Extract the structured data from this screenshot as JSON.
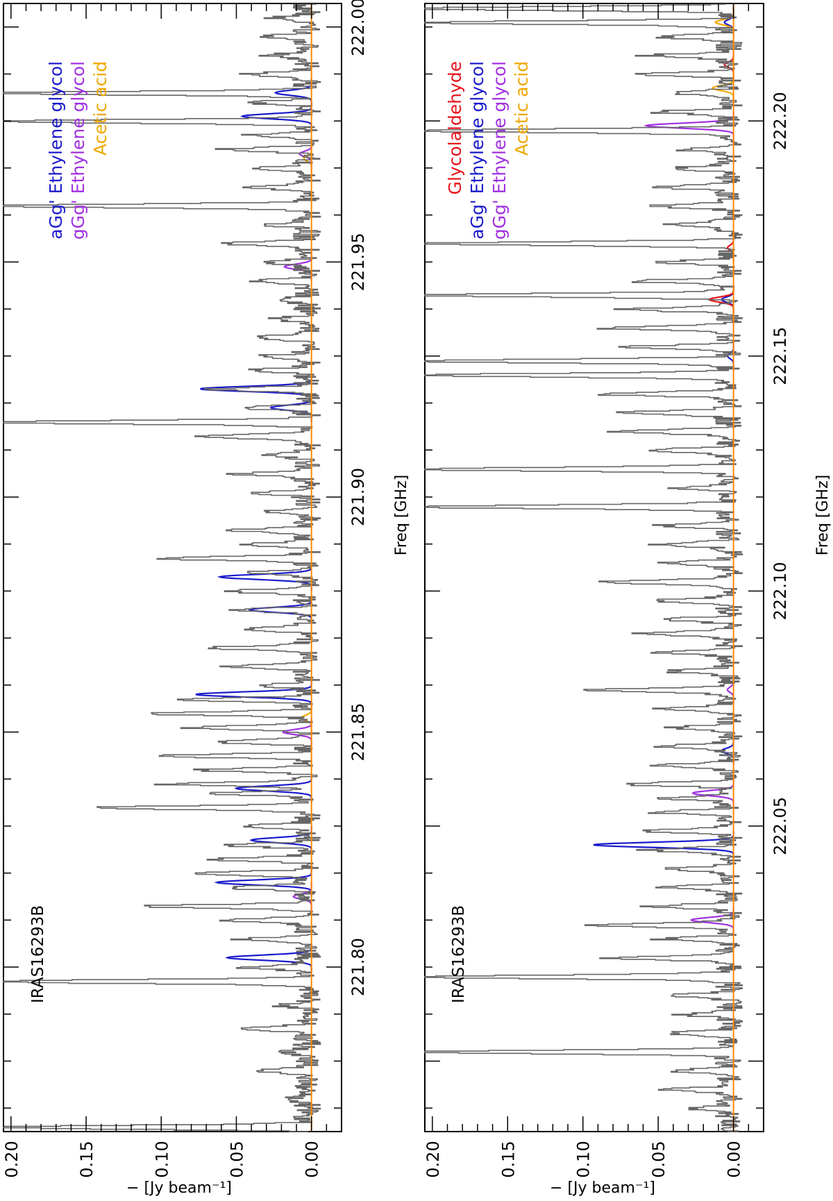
{
  "colors": {
    "observed": "#666666",
    "baseline": "#ff8800",
    "glycolaldehyde": "#e8141c",
    "aGg_ethylene_glycol": "#1a1acc",
    "gGg_ethylene_glycol": "#a030e0",
    "acetic_acid": "#f0a800"
  },
  "chart_data": [
    {
      "type": "line",
      "panel": "top",
      "source_label": "IRAS16293B",
      "xlabel": "Freq [GHz]",
      "ylabel": "− [Jy beam⁻¹]",
      "xlim": [
        221.765,
        222.005
      ],
      "ylim": [
        -0.02,
        0.205
      ],
      "x_ticks": [
        "221.80",
        "221.85",
        "221.90",
        "221.95",
        "222.00"
      ],
      "y_ticks": [
        "0.20",
        "0.15",
        "0.10",
        "0.05",
        "0.00"
      ],
      "legend": [
        {
          "label": "aGg' Ethylene glycol",
          "color_key": "aGg_ethylene_glycol"
        },
        {
          "label": "gGg' Ethylene glycol",
          "color_key": "gGg_ethylene_glycol"
        },
        {
          "label": "Acetic acid",
          "color_key": "acetic_acid"
        }
      ],
      "observed_peaks": [
        [
          221.766,
          0.21
        ],
        [
          221.772,
          0.01
        ],
        [
          221.778,
          0.03
        ],
        [
          221.782,
          0.015
        ],
        [
          221.787,
          0.045
        ],
        [
          221.792,
          0.02
        ],
        [
          221.797,
          0.21
        ],
        [
          221.8,
          0.04
        ],
        [
          221.806,
          0.045
        ],
        [
          221.81,
          0.058
        ],
        [
          221.813,
          0.11
        ],
        [
          221.817,
          0.055
        ],
        [
          221.82,
          0.075
        ],
        [
          221.823,
          0.065
        ],
        [
          221.826,
          0.05
        ],
        [
          221.83,
          0.045
        ],
        [
          221.834,
          0.145
        ],
        [
          221.837,
          0.06
        ],
        [
          221.839,
          0.095
        ],
        [
          221.842,
          0.07
        ],
        [
          221.845,
          0.095
        ],
        [
          221.848,
          0.065
        ],
        [
          221.851,
          0.08
        ],
        [
          221.854,
          0.105
        ],
        [
          221.857,
          0.08
        ],
        [
          221.86,
          0.03
        ],
        [
          221.864,
          0.05
        ],
        [
          221.868,
          0.065
        ],
        [
          221.872,
          0.04
        ],
        [
          221.876,
          0.045
        ],
        [
          221.88,
          0.055
        ],
        [
          221.884,
          0.035
        ],
        [
          221.887,
          0.1
        ],
        [
          221.89,
          0.04
        ],
        [
          221.893,
          0.045
        ],
        [
          221.897,
          0.03
        ],
        [
          221.901,
          0.035
        ],
        [
          221.905,
          0.045
        ],
        [
          221.909,
          0.03
        ],
        [
          221.913,
          0.08
        ],
        [
          221.916,
          0.21
        ],
        [
          221.919,
          0.045
        ],
        [
          221.923,
          0.065
        ],
        [
          221.927,
          0.04
        ],
        [
          221.93,
          0.03
        ],
        [
          221.934,
          0.035
        ],
        [
          221.938,
          0.025
        ],
        [
          221.942,
          0.02
        ],
        [
          221.946,
          0.035
        ],
        [
          221.95,
          0.03
        ],
        [
          221.954,
          0.055
        ],
        [
          221.958,
          0.025
        ],
        [
          221.962,
          0.21
        ],
        [
          221.966,
          0.04
        ],
        [
          221.97,
          0.035
        ],
        [
          221.974,
          0.055
        ],
        [
          221.977,
          0.04
        ],
        [
          221.98,
          0.21
        ],
        [
          221.984,
          0.035
        ],
        [
          221.986,
          0.21
        ],
        [
          221.99,
          0.04
        ],
        [
          221.994,
          0.025
        ],
        [
          221.998,
          0.03
        ],
        [
          222.002,
          0.02
        ]
      ],
      "model_lines": {
        "aGg_ethylene_glycol": [
          [
            221.802,
            0.056
          ],
          [
            221.818,
            0.063
          ],
          [
            221.827,
            0.04
          ],
          [
            221.838,
            0.05
          ],
          [
            221.858,
            0.077
          ],
          [
            221.876,
            0.041
          ],
          [
            221.883,
            0.061
          ],
          [
            221.919,
            0.027
          ],
          [
            221.923,
            0.074
          ],
          [
            221.981,
            0.046
          ],
          [
            221.986,
            0.024
          ]
        ],
        "gGg_ethylene_glycol": [
          [
            221.815,
            0.012
          ],
          [
            221.85,
            0.019
          ],
          [
            221.949,
            0.018
          ],
          [
            221.973,
            0.008
          ]
        ],
        "acetic_acid": [
          [
            221.853,
            0.007
          ],
          [
            221.972,
            0.005
          ]
        ],
        "glycolaldehyde": []
      }
    },
    {
      "type": "line",
      "panel": "bottom",
      "source_label": "IRAS16293B",
      "xlabel": "Freq [GHz]",
      "ylabel": "− [Jy beam⁻¹]",
      "xlim": [
        221.985,
        222.225
      ],
      "ylim": [
        -0.02,
        0.205
      ],
      "x_ticks": [
        "222.05",
        "222.10",
        "222.15",
        "222.20"
      ],
      "y_ticks": [
        "0.20",
        "0.15",
        "0.10",
        "0.05",
        "0.00"
      ],
      "legend": [
        {
          "label": "Glycolaldehyde",
          "color_key": "glycolaldehyde"
        },
        {
          "label": "aGg' Ethylene glycol",
          "color_key": "aGg_ethylene_glycol"
        },
        {
          "label": "gGg' Ethylene glycol",
          "color_key": "gGg_ethylene_glycol"
        },
        {
          "label": "Acetic acid",
          "color_key": "acetic_acid"
        }
      ],
      "observed_peaks": [
        [
          221.99,
          0.025
        ],
        [
          221.994,
          0.04
        ],
        [
          221.998,
          0.035
        ],
        [
          222.002,
          0.21
        ],
        [
          222.006,
          0.04
        ],
        [
          222.01,
          0.03
        ],
        [
          222.014,
          0.045
        ],
        [
          222.018,
          0.21
        ],
        [
          222.022,
          0.085
        ],
        [
          222.026,
          0.045
        ],
        [
          222.029,
          0.09
        ],
        [
          222.033,
          0.05
        ],
        [
          222.037,
          0.045
        ],
        [
          222.041,
          0.04
        ],
        [
          222.045,
          0.055
        ],
        [
          222.049,
          0.06
        ],
        [
          222.053,
          0.05
        ],
        [
          222.056,
          0.04
        ],
        [
          222.059,
          0.07
        ],
        [
          222.063,
          0.045
        ],
        [
          222.067,
          0.05
        ],
        [
          222.071,
          0.035
        ],
        [
          222.075,
          0.045
        ],
        [
          222.079,
          0.09
        ],
        [
          222.083,
          0.04
        ],
        [
          222.087,
          0.045
        ],
        [
          222.091,
          0.06
        ],
        [
          222.094,
          0.045
        ],
        [
          222.098,
          0.05
        ],
        [
          222.102,
          0.09
        ],
        [
          222.106,
          0.04
        ],
        [
          222.11,
          0.05
        ],
        [
          222.114,
          0.045
        ],
        [
          222.118,
          0.21
        ],
        [
          222.122,
          0.035
        ],
        [
          222.126,
          0.21
        ],
        [
          222.13,
          0.06
        ],
        [
          222.134,
          0.08
        ],
        [
          222.138,
          0.075
        ],
        [
          222.142,
          0.09
        ],
        [
          222.146,
          0.21
        ],
        [
          222.149,
          0.21
        ],
        [
          222.152,
          0.065
        ],
        [
          222.156,
          0.085
        ],
        [
          222.16,
          0.07
        ],
        [
          222.163,
          0.21
        ],
        [
          222.166,
          0.065
        ],
        [
          222.17,
          0.045
        ],
        [
          222.174,
          0.21
        ],
        [
          222.178,
          0.04
        ],
        [
          222.182,
          0.05
        ],
        [
          222.186,
          0.045
        ],
        [
          222.19,
          0.035
        ],
        [
          222.194,
          0.03
        ],
        [
          222.198,
          0.21
        ],
        [
          222.202,
          0.05
        ],
        [
          222.206,
          0.04
        ],
        [
          222.21,
          0.06
        ],
        [
          222.214,
          0.055
        ],
        [
          222.218,
          0.045
        ],
        [
          222.221,
          0.21
        ],
        [
          222.224,
          0.21
        ]
      ],
      "model_lines": {
        "aGg_ethylene_glycol": [
          [
            222.046,
            0.093
          ],
          [
            222.066,
            0.008
          ],
          [
            222.15,
            0.004
          ],
          [
            222.162,
            0.008
          ],
          [
            222.221,
            0.006
          ]
        ],
        "gGg_ethylene_glycol": [
          [
            222.03,
            0.028
          ],
          [
            222.057,
            0.027
          ],
          [
            222.079,
            0.004
          ],
          [
            222.199,
            0.058
          ]
        ],
        "acetic_acid": [
          [
            222.207,
            0.014
          ],
          [
            222.221,
            0.012
          ]
        ],
        "glycolaldehyde": [
          [
            222.162,
            0.016
          ],
          [
            222.173,
            0.004
          ],
          [
            222.212,
            0.006
          ]
        ]
      }
    }
  ]
}
